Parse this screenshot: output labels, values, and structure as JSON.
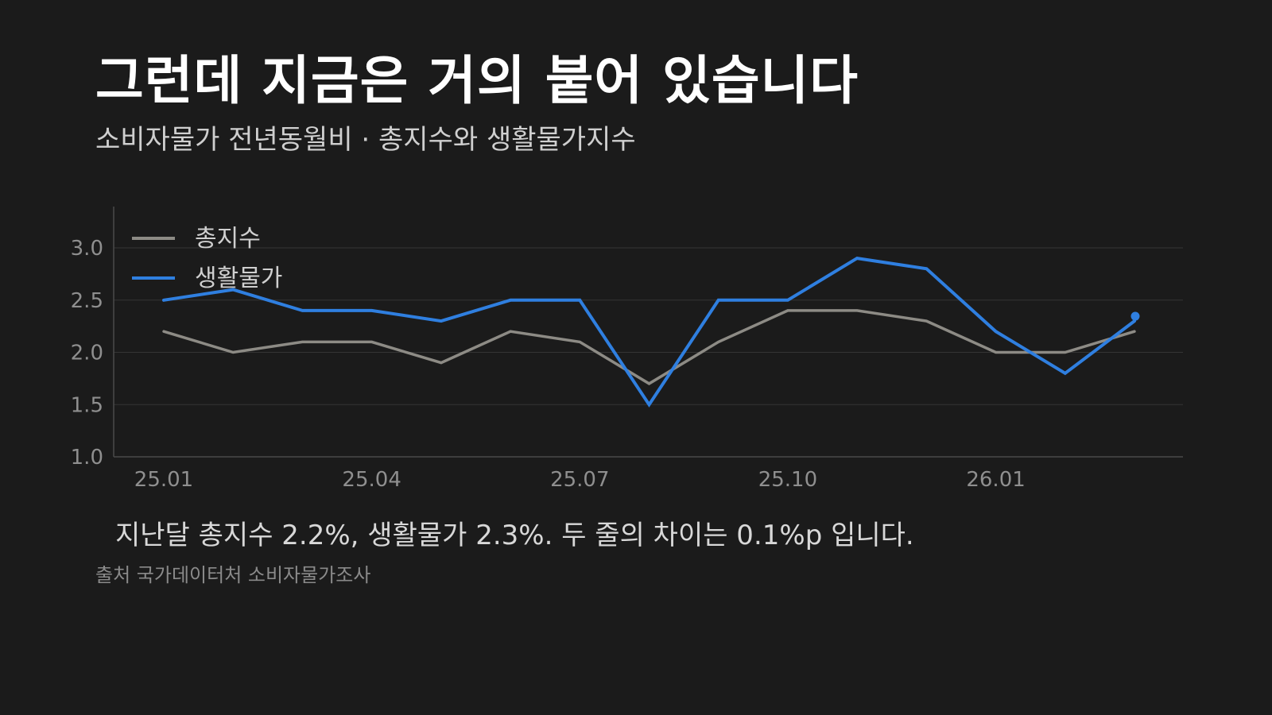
{
  "header": {
    "title": "그런데 지금은 거의 붙어 있습니다",
    "subtitle": "소비자물가 전년동월비 · 총지수와 생활물가지수"
  },
  "summary": "지난달 총지수 2.2%, 생활물가 2.3%. 두 줄의 차이는 0.1%p 입니다.",
  "source": "출처 국가데이터처 소비자물가조사",
  "colors": {
    "background": "#1b1b1b",
    "headline": "#2f6fd8",
    "overall": "#8d8b85"
  },
  "chart_data": {
    "type": "line",
    "title": "",
    "xlabel": "",
    "ylabel": "",
    "ylim": [
      1.0,
      3.0
    ],
    "yticks": [
      "1.0",
      "1.5",
      "2.0",
      "2.5",
      "3.0"
    ],
    "x": [
      "25.01",
      "25.02",
      "25.03",
      "25.04",
      "25.05",
      "25.06",
      "25.07",
      "25.08",
      "25.09",
      "25.10",
      "25.11",
      "25.12",
      "26.01",
      "26.02",
      "26.03"
    ],
    "xtick_labels": [
      "25.01",
      "25.04",
      "25.07",
      "25.10",
      "26.01"
    ],
    "grid": true,
    "legend_position": "top-left",
    "series": [
      {
        "name": "총지수",
        "color": "#8d8b85",
        "values": [
          2.2,
          2.0,
          2.1,
          2.1,
          1.9,
          2.2,
          2.1,
          1.7,
          2.1,
          2.4,
          2.4,
          2.3,
          2.0,
          2.0,
          2.2
        ]
      },
      {
        "name": "생활물가",
        "color": "#2f7fe0",
        "values": [
          2.5,
          2.6,
          2.4,
          2.4,
          2.3,
          2.5,
          2.5,
          1.5,
          2.5,
          2.5,
          2.9,
          2.8,
          2.2,
          1.8,
          2.3
        ]
      }
    ]
  }
}
